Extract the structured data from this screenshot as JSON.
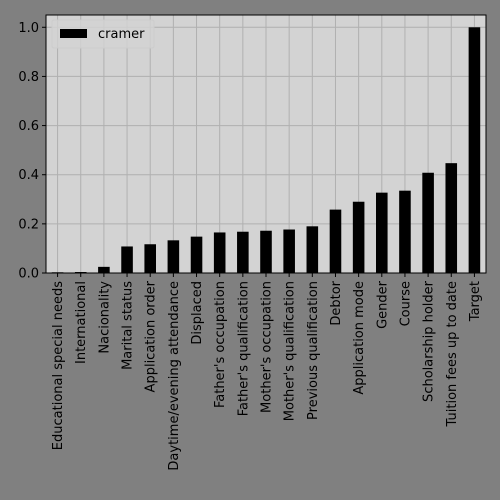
{
  "chart_data": {
    "type": "bar",
    "categories": [
      "Educational special needs",
      "International",
      "Nacionality",
      "Marital status",
      "Application order",
      "Daytime/evening attendance",
      "Displaced",
      "Father's occupation",
      "Father's qualification",
      "Mother's occupation",
      "Mother's qualification",
      "Previous qualification",
      "Debtor",
      "Application mode",
      "Gender",
      "Course",
      "Scholarship holder",
      "Tuition fees up to date",
      "Target"
    ],
    "series": [
      {
        "name": "cramer",
        "values": [
          0.003,
          0.004,
          0.025,
          0.108,
          0.117,
          0.133,
          0.148,
          0.165,
          0.168,
          0.172,
          0.177,
          0.19,
          0.258,
          0.29,
          0.327,
          0.335,
          0.408,
          0.447,
          1.0
        ]
      }
    ],
    "ylim": [
      0,
      1.05
    ],
    "yticks": [
      0.0,
      0.2,
      0.4,
      0.6,
      0.8,
      1.0
    ],
    "ytick_labels": [
      "0.0",
      "0.2",
      "0.4",
      "0.6",
      "0.8",
      "1.0"
    ],
    "grid": true,
    "legend": "top-left",
    "colors": {
      "bar": "#000000",
      "plot_bg": "#d3d3d3",
      "figure_bg": "#808080",
      "grid": "#b0b0b0"
    }
  }
}
